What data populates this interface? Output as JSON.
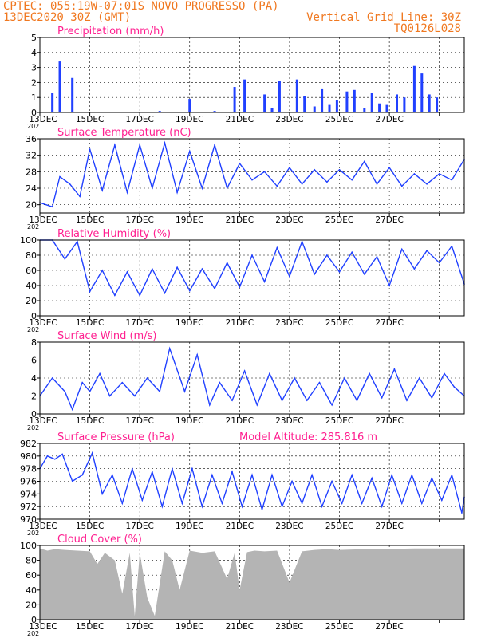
{
  "header": {
    "line1": "CPTEC:  055:19W-07:01S  NOVO PROGRESSO (PA)",
    "line2_left": "13DEC2020 30Z (GMT)",
    "line2_right": "Vertical Grid Line: 30Z",
    "line3_right": "TQ0126L028"
  },
  "colors": {
    "header": "#f07820",
    "panel_title": "#ff2090",
    "series": "#2040ff",
    "cloud": "#b4b4b4",
    "axis": "#000000"
  },
  "x_ticks": [
    "13DEC",
    "15DEC",
    "17DEC",
    "19DEC",
    "21DEC",
    "23DEC",
    "25DEC",
    "27DEC"
  ],
  "year_label": "202",
  "chart_data": [
    {
      "type": "bar",
      "title": "Precipitation (mm/h)",
      "ylim": [
        0,
        5
      ],
      "yticks": [
        0,
        1,
        2,
        3,
        4,
        5
      ],
      "x_days": [
        0.5,
        0.8,
        1.3,
        4.8,
        6.0,
        7.0,
        7.8,
        8.2,
        9.0,
        9.3,
        9.6,
        10.3,
        10.6,
        11.0,
        11.3,
        11.6,
        11.9,
        12.3,
        12.6,
        13.0,
        13.3,
        13.6,
        13.9,
        14.3,
        14.6,
        15.0,
        15.3,
        15.6,
        15.9
      ],
      "values": [
        1.3,
        3.4,
        2.3,
        0.1,
        0.9,
        0.1,
        1.7,
        2.2,
        1.2,
        0.3,
        2.1,
        2.2,
        1.1,
        0.4,
        1.6,
        0.5,
        0.8,
        1.4,
        1.5,
        0.3,
        1.3,
        0.6,
        0.5,
        1.2,
        1.0,
        3.1,
        2.6,
        1.2,
        1.0
      ]
    },
    {
      "type": "line",
      "title": "Surface Temperature (nC)",
      "ylim": [
        18,
        36
      ],
      "yticks": [
        20,
        24,
        28,
        32,
        36
      ],
      "x_days": [
        0,
        0.5,
        0.8,
        1.2,
        1.6,
        2.0,
        2.5,
        3.0,
        3.5,
        4.0,
        4.5,
        5.0,
        5.5,
        6.0,
        6.5,
        7.0,
        7.5,
        8.0,
        8.5,
        9.0,
        9.5,
        10.0,
        10.5,
        11.0,
        11.5,
        12.0,
        12.5,
        13.0,
        13.5,
        14.0,
        14.5,
        15.0,
        15.5,
        16.0,
        16.5,
        17.0
      ],
      "values": [
        20.5,
        19.5,
        26.8,
        25,
        22,
        33.5,
        23.5,
        34.5,
        23,
        34.5,
        24,
        35,
        23,
        33,
        24,
        34.5,
        24,
        30,
        26,
        28,
        24.5,
        29,
        25,
        28.5,
        25.5,
        28.5,
        26,
        30.5,
        25,
        29,
        24.5,
        27.5,
        25,
        27.5,
        26,
        31
      ]
    },
    {
      "type": "line",
      "title": "Relative Humidity (%)",
      "ylim": [
        0,
        100
      ],
      "yticks": [
        0,
        20,
        40,
        60,
        80,
        100
      ],
      "x_days": [
        0,
        0.5,
        1.0,
        1.5,
        2.0,
        2.5,
        3.0,
        3.5,
        4.0,
        4.5,
        5.0,
        5.5,
        6.0,
        6.5,
        7.0,
        7.5,
        8.0,
        8.5,
        9.0,
        9.5,
        10.0,
        10.5,
        11.0,
        11.5,
        12.0,
        12.5,
        13.0,
        13.5,
        14.0,
        14.5,
        15.0,
        15.5,
        16.0,
        16.5,
        17.0
      ],
      "values": [
        100,
        100,
        75,
        98,
        32,
        60,
        27,
        58,
        27,
        62,
        30,
        64,
        33,
        62,
        36,
        70,
        38,
        80,
        45,
        90,
        52,
        98,
        55,
        80,
        58,
        84,
        55,
        78,
        40,
        88,
        62,
        86,
        70,
        92,
        42
      ]
    },
    {
      "type": "line",
      "title": "Surface Wind (m/s)",
      "ylim": [
        0,
        8
      ],
      "yticks": [
        0,
        2,
        4,
        6,
        8
      ],
      "x_days": [
        0,
        0.5,
        1.0,
        1.3,
        1.7,
        2.0,
        2.4,
        2.8,
        3.3,
        3.8,
        4.3,
        4.8,
        5.2,
        5.8,
        6.3,
        6.8,
        7.2,
        7.7,
        8.2,
        8.7,
        9.2,
        9.7,
        10.2,
        10.7,
        11.2,
        11.7,
        12.2,
        12.7,
        13.2,
        13.7,
        14.2,
        14.7,
        15.2,
        15.7,
        16.2,
        16.6,
        17.0
      ],
      "values": [
        2,
        4,
        2.5,
        0.5,
        3.5,
        2.5,
        4.5,
        2,
        3.5,
        2,
        4,
        2.5,
        7.3,
        2.5,
        6.6,
        1,
        3.5,
        1.5,
        4.8,
        1,
        4.5,
        1.5,
        4,
        1.5,
        3.5,
        1,
        4,
        1.5,
        4.5,
        1.8,
        5,
        1.5,
        4,
        1.8,
        4.5,
        3,
        2
      ]
    },
    {
      "type": "line",
      "title": "Surface Pressure (hPa)",
      "annotation": "Model Altitude: 285.816 m",
      "ylim": [
        970,
        982
      ],
      "yticks": [
        970,
        972,
        974,
        976,
        978,
        980,
        982
      ],
      "x_days": [
        0,
        0.3,
        0.6,
        0.9,
        1.3,
        1.7,
        2.1,
        2.5,
        2.9,
        3.3,
        3.7,
        4.1,
        4.5,
        4.9,
        5.3,
        5.7,
        6.1,
        6.5,
        6.9,
        7.3,
        7.7,
        8.1,
        8.5,
        8.9,
        9.3,
        9.7,
        10.1,
        10.5,
        10.9,
        11.3,
        11.7,
        12.1,
        12.5,
        12.9,
        13.3,
        13.7,
        14.1,
        14.5,
        14.9,
        15.3,
        15.7,
        16.1,
        16.5,
        16.9,
        17.0
      ],
      "values": [
        978,
        980,
        979.5,
        980.3,
        976,
        977,
        980.5,
        974,
        977,
        972.5,
        978,
        973,
        977.5,
        972,
        978,
        972.5,
        978,
        972,
        977,
        972.5,
        977.5,
        972,
        977,
        971.5,
        977,
        972,
        976,
        972.5,
        977,
        972,
        976,
        972.5,
        977,
        972.5,
        976.5,
        972,
        977,
        972.5,
        977,
        972.5,
        976.5,
        973,
        977,
        971,
        973.5
      ]
    },
    {
      "type": "area",
      "title": "Cloud Cover (%)",
      "ylim": [
        0,
        100
      ],
      "yticks": [
        0,
        20,
        40,
        60,
        80,
        100
      ],
      "x_days": [
        0,
        0.3,
        0.6,
        1.0,
        1.5,
        2.0,
        2.3,
        2.6,
        3.0,
        3.3,
        3.6,
        3.8,
        4.0,
        4.3,
        4.6,
        5.0,
        5.3,
        5.6,
        6.0,
        6.5,
        7.0,
        7.5,
        7.8,
        8.0,
        8.3,
        8.6,
        9.0,
        9.5,
        10.0,
        10.5,
        11.0,
        11.5,
        12.0,
        13.0,
        14.0,
        15.0,
        16.0,
        17.0
      ],
      "values": [
        96,
        93,
        95,
        94,
        93,
        92,
        75,
        90,
        80,
        35,
        90,
        5,
        90,
        30,
        5,
        92,
        80,
        40,
        93,
        90,
        92,
        55,
        90,
        40,
        91,
        93,
        92,
        93,
        50,
        92,
        94,
        95,
        94,
        95,
        95,
        96,
        96,
        96
      ]
    }
  ]
}
